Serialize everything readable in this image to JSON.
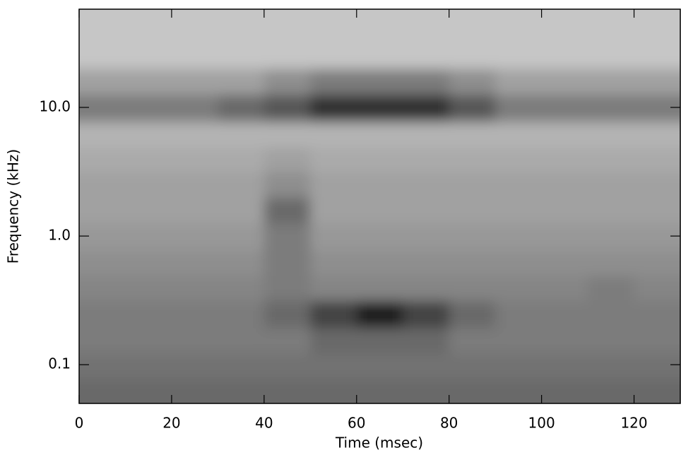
{
  "chart_data": {
    "type": "heatmap",
    "x_label": "Time (msec)",
    "y_label": "Frequency (kHz)",
    "x": [
      5,
      15,
      25,
      35,
      45,
      55,
      65,
      75,
      85,
      95,
      105,
      115,
      125
    ],
    "y": [
      0.06,
      0.1,
      0.15,
      0.25,
      0.4,
      0.6,
      1.0,
      1.6,
      2.5,
      4,
      6,
      10,
      16,
      25,
      40
    ],
    "z": [
      [
        6,
        6,
        6,
        6,
        6,
        6,
        6,
        6,
        6,
        6,
        6,
        6,
        6
      ],
      [
        5.5,
        5.5,
        5.5,
        5.5,
        5.5,
        5.5,
        5.5,
        5.5,
        5.5,
        5.5,
        5.5,
        5.5,
        5.5
      ],
      [
        5,
        5,
        5,
        5,
        5,
        6,
        6,
        6,
        5,
        5,
        5,
        5,
        5
      ],
      [
        5,
        5,
        5,
        5,
        6,
        8,
        10,
        8,
        6,
        5,
        5,
        5,
        5
      ],
      [
        4.5,
        4.5,
        4.5,
        4.5,
        5,
        4.5,
        4.5,
        4.5,
        4.5,
        4.5,
        4.5,
        5,
        4.5
      ],
      [
        4,
        4,
        4,
        4,
        5,
        4,
        4,
        4,
        4,
        4,
        4,
        4,
        4
      ],
      [
        3.5,
        3.5,
        3.5,
        3.5,
        5,
        3.5,
        3.5,
        3.5,
        3.5,
        3.5,
        3.5,
        3.5,
        3.5
      ],
      [
        3,
        3,
        3,
        3,
        6,
        3,
        3,
        3,
        3,
        3,
        3,
        3,
        3
      ],
      [
        3,
        3,
        3,
        3,
        4,
        3,
        3,
        3,
        3,
        3,
        3,
        3,
        3
      ],
      [
        2.5,
        2.5,
        2.5,
        2.5,
        3,
        2.5,
        2.5,
        2.5,
        2.5,
        2.5,
        2.5,
        2.5,
        2.5
      ],
      [
        2,
        2,
        2,
        2,
        2,
        2,
        2,
        2,
        2,
        2,
        2,
        2,
        2
      ],
      [
        5,
        5,
        5,
        6,
        7,
        9,
        9,
        9,
        7,
        5,
        5,
        5,
        5
      ],
      [
        3,
        3,
        3,
        3,
        4,
        5,
        5,
        5,
        4,
        3,
        3,
        3,
        3
      ],
      [
        1,
        1,
        1,
        1,
        1,
        1,
        1,
        1,
        1,
        1,
        1,
        1,
        1
      ],
      [
        1,
        1,
        1,
        1,
        1,
        1,
        1,
        1,
        1,
        1,
        1,
        1,
        1
      ]
    ],
    "zlim": [
      0,
      10
    ],
    "colorscale": [
      "#d9d9d9",
      "#1e1e1e"
    ],
    "xlim": [
      0,
      130
    ],
    "ylim": [
      0.05,
      58
    ],
    "xticks": [
      0,
      20,
      40,
      60,
      80,
      100,
      120
    ],
    "yticks": [
      {
        "value": 0.1,
        "label": "0.1"
      },
      {
        "value": 1,
        "label": "1.0"
      },
      {
        "value": 10,
        "label": "10.0"
      }
    ],
    "y_scale": "log"
  }
}
